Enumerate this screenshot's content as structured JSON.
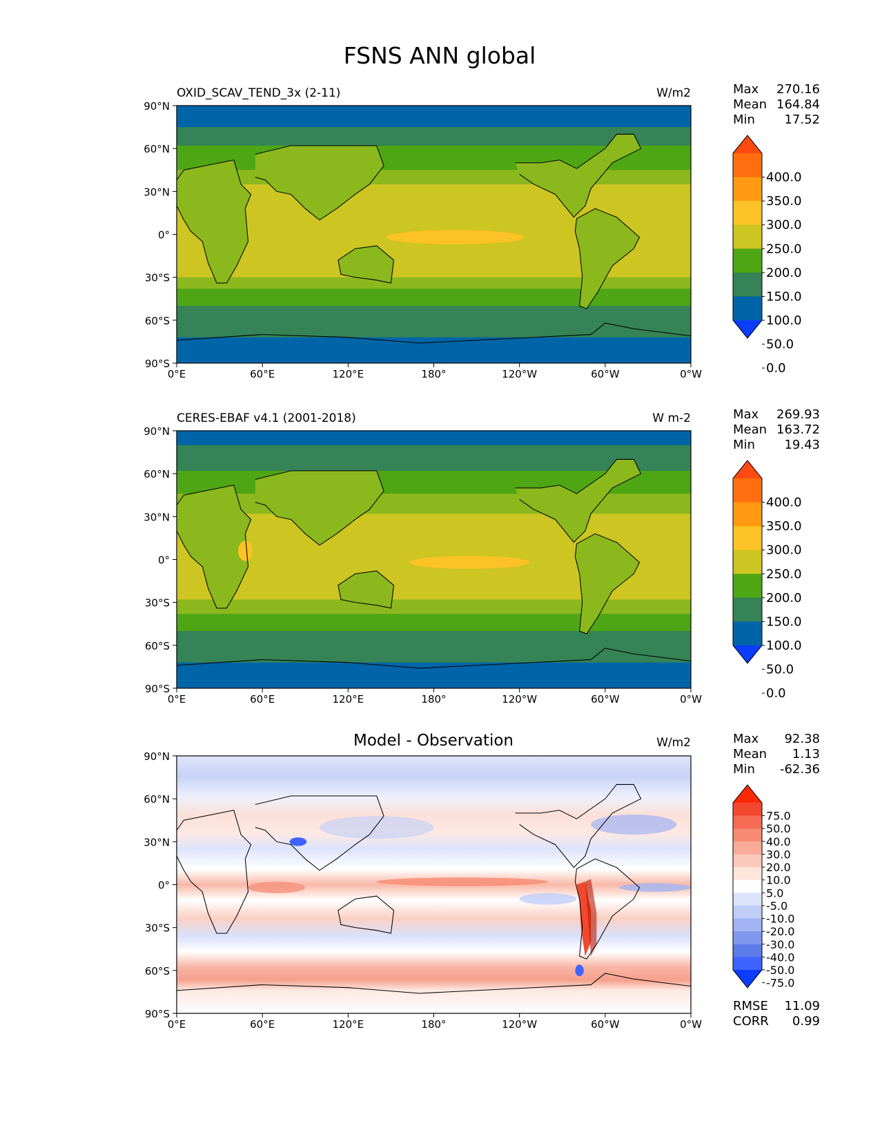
{
  "title": "FSNS ANN global",
  "lat_ticks": [
    "90°N",
    "60°N",
    "30°N",
    "0°",
    "30°S",
    "60°S",
    "90°S"
  ],
  "lon_ticks": [
    "0°E",
    "60°E",
    "120°E",
    "180°",
    "120°W",
    "60°W",
    "0°W"
  ],
  "stat_labels": {
    "max": "Max",
    "mean": "Mean",
    "min": "Min",
    "rmse": "RMSE",
    "corr": "CORR"
  },
  "panels": [
    {
      "id": "model",
      "left_title": "OXID_SCAV_TEND_3x (2-11)",
      "center_title": "",
      "units": "W/m2",
      "stats": {
        "max": "270.16",
        "mean": "164.84",
        "min": "17.52"
      },
      "colorbar": {
        "labels": [
          "400.0",
          "350.0",
          "300.0",
          "250.0",
          "200.0",
          "150.0",
          "100.0",
          "50.0",
          "0.0"
        ],
        "colors": [
          "#ff4a12",
          "#ff6f0f",
          "#ff9a12",
          "#fdc225",
          "#cdc522",
          "#4ea614",
          "#358356",
          "#0065a8",
          "#0a3dff"
        ]
      }
    },
    {
      "id": "obs",
      "left_title": "CERES-EBAF v4.1 (2001-2018)",
      "center_title": "",
      "units": "W m-2",
      "stats": {
        "max": "269.93",
        "mean": "163.72",
        "min": "19.43"
      },
      "colorbar": {
        "labels": [
          "400.0",
          "350.0",
          "300.0",
          "250.0",
          "200.0",
          "150.0",
          "100.0",
          "50.0",
          "0.0"
        ],
        "colors": [
          "#ff4a12",
          "#ff6f0f",
          "#ff9a12",
          "#fdc225",
          "#cdc522",
          "#4ea614",
          "#358356",
          "#0065a8",
          "#0a3dff"
        ]
      }
    },
    {
      "id": "diff",
      "left_title": "",
      "center_title": "Model - Observation",
      "units": "W/m2",
      "stats": {
        "max": "92.38",
        "mean": "1.13",
        "min": "-62.36",
        "rmse": "11.09",
        "corr": "0.99"
      },
      "colorbar": {
        "labels": [
          "75.0",
          "50.0",
          "40.0",
          "30.0",
          "20.0",
          "10.0",
          "5.0",
          "-5.0",
          "-10.0",
          "-20.0",
          "-30.0",
          "-40.0",
          "-50.0",
          "-75.0"
        ],
        "colors": [
          "#ff2a05",
          "#f2482f",
          "#f46a52",
          "#f78a73",
          "#f9ab97",
          "#fbc9bb",
          "#fde5dc",
          "#ffffff",
          "#dce3fb",
          "#bfcdf7",
          "#a2b4f3",
          "#8099ee",
          "#5c7ce9",
          "#3f63ff",
          "#0a3dff"
        ]
      }
    }
  ]
}
